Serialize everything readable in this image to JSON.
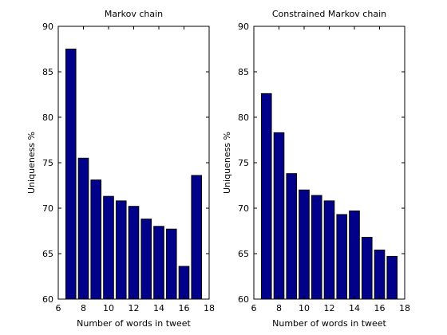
{
  "chart_data": [
    {
      "type": "bar",
      "title": "Markov chain",
      "xlabel": "Number of words in tweet",
      "ylabel": "Uniqueness %",
      "x": [
        7,
        8,
        9,
        10,
        11,
        12,
        13,
        14,
        15,
        16,
        17
      ],
      "values": [
        87.5,
        75.5,
        73.1,
        71.3,
        70.8,
        70.2,
        68.8,
        68.0,
        67.7,
        63.6,
        73.6
      ],
      "xlim": [
        6,
        18
      ],
      "ylim": [
        60,
        90
      ],
      "xticks": [
        "6",
        "8",
        "10",
        "12",
        "14",
        "16",
        "18"
      ],
      "yticks": [
        "60",
        "65",
        "70",
        "75",
        "80",
        "85",
        "90"
      ],
      "bar_color": "#00008B",
      "grid": false
    },
    {
      "type": "bar",
      "title": "Constrained Markov chain",
      "xlabel": "Number of words in tweet",
      "ylabel": "Uniqueness %",
      "x": [
        7,
        8,
        9,
        10,
        11,
        12,
        13,
        14,
        15,
        16,
        17
      ],
      "values": [
        82.6,
        78.3,
        73.8,
        72.0,
        71.4,
        70.8,
        69.3,
        69.7,
        66.8,
        65.4,
        64.7
      ],
      "xlim": [
        6,
        18
      ],
      "ylim": [
        60,
        90
      ],
      "xticks": [
        "6",
        "8",
        "10",
        "12",
        "14",
        "16",
        "18"
      ],
      "yticks": [
        "60",
        "65",
        "70",
        "75",
        "80",
        "85",
        "90"
      ],
      "bar_color": "#00008B",
      "grid": false
    }
  ]
}
